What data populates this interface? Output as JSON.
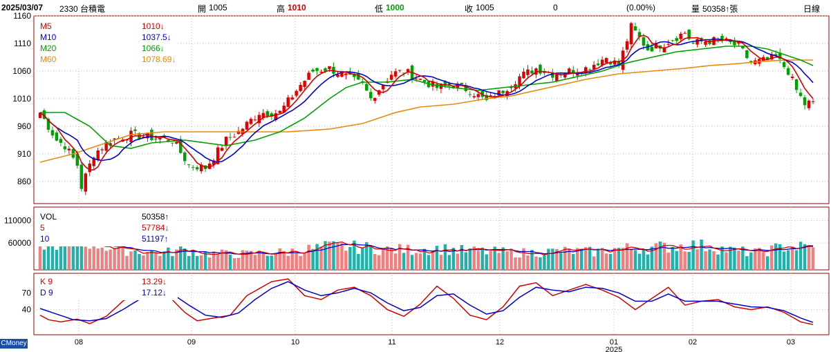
{
  "header": {
    "date": "2025/03/07",
    "stock": "2330 台積電",
    "open_label": "開",
    "open": "1005",
    "high_label": "高",
    "high": "1010",
    "low_label": "低",
    "low": "1000",
    "close_label": "收",
    "close": "1005",
    "change": "0",
    "change_pct": "(0.00%)",
    "volume_label": "量",
    "volume": "50358↑張",
    "period": "日線"
  },
  "price_panel": {
    "legend": [
      {
        "name": "M5",
        "value": "1010↓",
        "color": "#d40000"
      },
      {
        "name": "M10",
        "value": "1037.5↓",
        "color": "#0000cc"
      },
      {
        "name": "M20",
        "value": "1066↓",
        "color": "#00a000"
      },
      {
        "name": "M60",
        "value": "1078.69↓",
        "color": "#e8890c"
      }
    ],
    "y_ticks": [
      "1160",
      "1110",
      "1060",
      "1010",
      "960",
      "910",
      "860"
    ]
  },
  "volume_panel": {
    "legend": [
      {
        "name": "VOL",
        "value": "50358↑",
        "color": "#000000"
      },
      {
        "name": "5",
        "value": "57784↓",
        "color": "#d40000"
      },
      {
        "name": "10",
        "value": "51197↑",
        "color": "#0000cc"
      }
    ],
    "y_ticks": [
      "110000",
      "60000"
    ]
  },
  "kd_panel": {
    "legend": [
      {
        "name": "K 9",
        "value": "13.29↓",
        "color": "#d40000"
      },
      {
        "name": "D 9",
        "value": "17.12↓",
        "color": "#0000cc"
      }
    ],
    "y_ticks": [
      "70",
      "40"
    ]
  },
  "x_axis": {
    "labels": [
      "08",
      "09",
      "10",
      "11",
      "12",
      "01",
      "02",
      "03"
    ],
    "year_label": "2025"
  },
  "badge": "CMoney",
  "colors": {
    "up": "#e00000",
    "down": "#00a000",
    "vol_up": "#f08080",
    "vol_down": "#20b2aa",
    "frame": "#8b0000",
    "grid": "#b8b8b8"
  },
  "chart_data": {
    "type": "candlestick",
    "price_range": [
      820,
      1160
    ],
    "volume_range": [
      0,
      140000
    ],
    "kd_range": [
      0,
      100
    ],
    "anchors": {
      "close": [
        [
          0,
          985
        ],
        [
          4,
          935
        ],
        [
          6,
          925
        ],
        [
          9,
          890
        ],
        [
          10,
          850
        ],
        [
          13,
          910
        ],
        [
          17,
          935
        ],
        [
          22,
          945
        ],
        [
          27,
          940
        ],
        [
          32,
          935
        ],
        [
          36,
          890
        ],
        [
          40,
          885
        ],
        [
          45,
          935
        ],
        [
          48,
          950
        ],
        [
          53,
          985
        ],
        [
          58,
          985
        ],
        [
          63,
          1035
        ],
        [
          66,
          1060
        ],
        [
          70,
          1065
        ],
        [
          74,
          1050
        ],
        [
          78,
          1035
        ],
        [
          80,
          1010
        ],
        [
          85,
          1055
        ],
        [
          88,
          1060
        ],
        [
          92,
          1045
        ],
        [
          96,
          1030
        ],
        [
          100,
          1035
        ],
        [
          104,
          1025
        ],
        [
          108,
          1005
        ],
        [
          112,
          1025
        ],
        [
          116,
          1050
        ],
        [
          120,
          1065
        ],
        [
          124,
          1055
        ],
        [
          128,
          1060
        ],
        [
          132,
          1065
        ],
        [
          137,
          1085
        ],
        [
          140,
          1070
        ],
        [
          143,
          1140
        ],
        [
          147,
          1100
        ],
        [
          151,
          1110
        ],
        [
          156,
          1130
        ],
        [
          158,
          1110
        ],
        [
          161,
          1115
        ],
        [
          165,
          1115
        ],
        [
          169,
          1105
        ],
        [
          172,
          1075
        ],
        [
          176,
          1080
        ],
        [
          178,
          1085
        ],
        [
          181,
          1060
        ],
        [
          183,
          1025
        ],
        [
          185,
          1000
        ],
        [
          187,
          1005
        ]
      ],
      "m20": [
        [
          0,
          985
        ],
        [
          6,
          985
        ],
        [
          12,
          960
        ],
        [
          17,
          925
        ],
        [
          22,
          920
        ],
        [
          27,
          930
        ],
        [
          35,
          935
        ],
        [
          45,
          925
        ],
        [
          52,
          935
        ],
        [
          58,
          950
        ],
        [
          64,
          975
        ],
        [
          70,
          1010
        ],
        [
          74,
          1030
        ],
        [
          78,
          1040
        ],
        [
          84,
          1040
        ],
        [
          90,
          1045
        ],
        [
          95,
          1035
        ],
        [
          100,
          1030
        ],
        [
          106,
          1025
        ],
        [
          112,
          1030
        ],
        [
          118,
          1035
        ],
        [
          124,
          1040
        ],
        [
          130,
          1050
        ],
        [
          136,
          1060
        ],
        [
          142,
          1075
        ],
        [
          148,
          1085
        ],
        [
          154,
          1095
        ],
        [
          160,
          1100
        ],
        [
          166,
          1105
        ],
        [
          172,
          1105
        ],
        [
          176,
          1100
        ],
        [
          180,
          1090
        ],
        [
          184,
          1080
        ],
        [
          187,
          1070
        ]
      ],
      "m60": [
        [
          0,
          895
        ],
        [
          8,
          910
        ],
        [
          14,
          925
        ],
        [
          22,
          945
        ],
        [
          30,
          950
        ],
        [
          40,
          950
        ],
        [
          50,
          950
        ],
        [
          60,
          950
        ],
        [
          70,
          955
        ],
        [
          78,
          965
        ],
        [
          86,
          985
        ],
        [
          92,
          995
        ],
        [
          100,
          1000
        ],
        [
          108,
          1010
        ],
        [
          114,
          1015
        ],
        [
          120,
          1025
        ],
        [
          126,
          1035
        ],
        [
          132,
          1045
        ],
        [
          140,
          1055
        ],
        [
          148,
          1060
        ],
        [
          156,
          1065
        ],
        [
          162,
          1070
        ],
        [
          168,
          1073
        ],
        [
          174,
          1077
        ],
        [
          180,
          1080
        ],
        [
          187,
          1080
        ]
      ],
      "vol": [
        [
          0,
          58000
        ],
        [
          6,
          62000
        ],
        [
          12,
          62000
        ],
        [
          16,
          52000
        ],
        [
          20,
          45000
        ],
        [
          26,
          40000
        ],
        [
          30,
          38000
        ],
        [
          35,
          45000
        ],
        [
          40,
          36000
        ],
        [
          50,
          35000
        ],
        [
          60,
          40000
        ],
        [
          70,
          52000
        ],
        [
          78,
          50000
        ],
        [
          84,
          45000
        ],
        [
          90,
          45000
        ],
        [
          96,
          48000
        ],
        [
          102,
          43000
        ],
        [
          110,
          40000
        ],
        [
          118,
          38000
        ],
        [
          126,
          42000
        ],
        [
          134,
          40000
        ],
        [
          140,
          48000
        ],
        [
          146,
          48000
        ],
        [
          152,
          52000
        ],
        [
          158,
          55000
        ],
        [
          162,
          52000
        ],
        [
          168,
          42000
        ],
        [
          174,
          38000
        ],
        [
          180,
          52000
        ],
        [
          187,
          50358
        ]
      ],
      "k": [
        [
          0,
          30
        ],
        [
          2,
          22
        ],
        [
          5,
          18
        ],
        [
          9,
          23
        ],
        [
          12,
          15
        ],
        [
          16,
          28
        ],
        [
          20,
          55
        ],
        [
          24,
          75
        ],
        [
          27,
          85
        ],
        [
          31,
          65
        ],
        [
          35,
          35
        ],
        [
          38,
          20
        ],
        [
          42,
          25
        ],
        [
          46,
          30
        ],
        [
          50,
          65
        ],
        [
          56,
          90
        ],
        [
          60,
          95
        ],
        [
          64,
          65
        ],
        [
          68,
          58
        ],
        [
          72,
          75
        ],
        [
          76,
          80
        ],
        [
          80,
          65
        ],
        [
          84,
          40
        ],
        [
          88,
          28
        ],
        [
          92,
          50
        ],
        [
          96,
          82
        ],
        [
          100,
          60
        ],
        [
          104,
          30
        ],
        [
          108,
          22
        ],
        [
          112,
          45
        ],
        [
          116,
          82
        ],
        [
          120,
          88
        ],
        [
          124,
          65
        ],
        [
          128,
          75
        ],
        [
          132,
          85
        ],
        [
          136,
          75
        ],
        [
          140,
          62
        ],
        [
          144,
          40
        ],
        [
          148,
          60
        ],
        [
          152,
          80
        ],
        [
          156,
          48
        ],
        [
          160,
          55
        ],
        [
          164,
          58
        ],
        [
          168,
          45
        ],
        [
          172,
          40
        ],
        [
          176,
          45
        ],
        [
          180,
          35
        ],
        [
          184,
          18
        ],
        [
          187,
          13.29
        ]
      ],
      "d": [
        [
          0,
          42
        ],
        [
          4,
          32
        ],
        [
          8,
          22
        ],
        [
          12,
          20
        ],
        [
          16,
          24
        ],
        [
          20,
          40
        ],
        [
          24,
          58
        ],
        [
          28,
          72
        ],
        [
          32,
          68
        ],
        [
          36,
          48
        ],
        [
          40,
          30
        ],
        [
          44,
          26
        ],
        [
          48,
          34
        ],
        [
          52,
          58
        ],
        [
          56,
          78
        ],
        [
          60,
          90
        ],
        [
          64,
          75
        ],
        [
          68,
          65
        ],
        [
          72,
          70
        ],
        [
          76,
          78
        ],
        [
          80,
          70
        ],
        [
          84,
          52
        ],
        [
          88,
          38
        ],
        [
          92,
          44
        ],
        [
          96,
          65
        ],
        [
          100,
          68
        ],
        [
          104,
          48
        ],
        [
          108,
          32
        ],
        [
          112,
          38
        ],
        [
          116,
          62
        ],
        [
          120,
          80
        ],
        [
          124,
          75
        ],
        [
          128,
          72
        ],
        [
          132,
          80
        ],
        [
          136,
          78
        ],
        [
          140,
          70
        ],
        [
          144,
          55
        ],
        [
          148,
          55
        ],
        [
          152,
          68
        ],
        [
          156,
          55
        ],
        [
          160,
          55
        ],
        [
          164,
          55
        ],
        [
          168,
          50
        ],
        [
          172,
          45
        ],
        [
          176,
          44
        ],
        [
          180,
          38
        ],
        [
          184,
          25
        ],
        [
          187,
          17.12
        ]
      ]
    },
    "total_days": 188
  }
}
